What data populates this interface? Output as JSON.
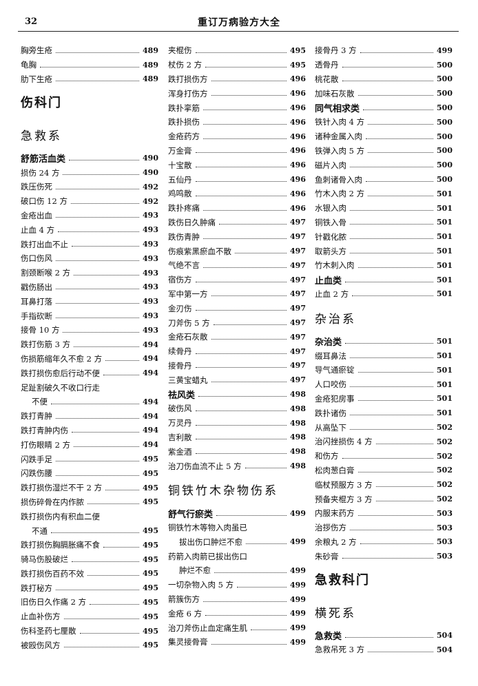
{
  "header": {
    "page_number": "32",
    "book_title": "重订万病验方大全"
  },
  "columns": [
    [
      {
        "type": "entry",
        "text": "胸旁生疮",
        "page": "489"
      },
      {
        "type": "entry",
        "text": "龟胸",
        "page": "489"
      },
      {
        "type": "entry",
        "text": "肋下生疮",
        "page": "489"
      },
      {
        "type": "h1",
        "text": "伤科门"
      },
      {
        "type": "h2",
        "text": "急救系"
      },
      {
        "type": "cat",
        "text": "舒筋活血类",
        "page": "490"
      },
      {
        "type": "entry",
        "text": "损伤 24 方",
        "page": "490"
      },
      {
        "type": "entry",
        "text": "跌压伤死",
        "page": "492"
      },
      {
        "type": "entry",
        "text": "破口伤 12 方",
        "page": "492"
      },
      {
        "type": "entry",
        "text": "金疮出血",
        "page": "493"
      },
      {
        "type": "entry",
        "text": "止血 4 方",
        "page": "493"
      },
      {
        "type": "entry",
        "text": "跌打出血不止",
        "page": "493"
      },
      {
        "type": "entry",
        "text": "伤口伤风",
        "page": "493"
      },
      {
        "type": "entry",
        "text": "割颈断喉 2 方",
        "page": "493"
      },
      {
        "type": "entry",
        "text": "戳伤肠出",
        "page": "493"
      },
      {
        "type": "entry",
        "text": "耳鼻打落",
        "page": "493"
      },
      {
        "type": "entry",
        "text": "手指砍断",
        "page": "493"
      },
      {
        "type": "entry",
        "text": "接骨 10 方",
        "page": "493"
      },
      {
        "type": "entry",
        "text": "跌打伤筋 3 方",
        "page": "494"
      },
      {
        "type": "entry",
        "text": "伤损筋缩年久不愈 2 方",
        "page": "494"
      },
      {
        "type": "entry",
        "text": "跌打损伤愈后行动不便",
        "page": "494"
      },
      {
        "type": "wrap",
        "text": "足趾割破久不收口行走"
      },
      {
        "type": "cont",
        "text": "不便",
        "page": "494"
      },
      {
        "type": "entry",
        "text": "跌打青肿",
        "page": "494"
      },
      {
        "type": "entry",
        "text": "跌打青肿内伤",
        "page": "494"
      },
      {
        "type": "entry",
        "text": "打伤眼睛 2 方",
        "page": "494"
      },
      {
        "type": "entry",
        "text": "闪跌手足",
        "page": "495"
      },
      {
        "type": "entry",
        "text": "闪跌伤腰",
        "page": "495"
      },
      {
        "type": "entry",
        "text": "跌打损伤湿烂不干 2 方",
        "page": "495"
      },
      {
        "type": "entry",
        "text": "损伤碎骨在内作脓",
        "page": "495"
      },
      {
        "type": "wrap",
        "text": "跌打损伤内有积血二便"
      },
      {
        "type": "cont",
        "text": "不通",
        "page": "495"
      },
      {
        "type": "entry",
        "text": "跌打损伤胸膈胀痛不食",
        "page": "495"
      },
      {
        "type": "entry",
        "text": "骑马伤股破烂",
        "page": "495"
      },
      {
        "type": "entry",
        "text": "跌打损伤百药不效",
        "page": "495"
      },
      {
        "type": "entry",
        "text": "跌打秘方",
        "page": "495"
      },
      {
        "type": "entry",
        "text": "旧伤日久作痛 2 方",
        "page": "495"
      },
      {
        "type": "entry",
        "text": "止血补伤方",
        "page": "495"
      },
      {
        "type": "entry",
        "text": "伤科圣药七厘散",
        "page": "495"
      },
      {
        "type": "entry",
        "text": "被殴伤风方",
        "page": "495"
      }
    ],
    [
      {
        "type": "entry",
        "text": "夹棍伤",
        "page": "495"
      },
      {
        "type": "entry",
        "text": "杖伤 2 方",
        "page": "495"
      },
      {
        "type": "entry",
        "text": "跌打损伤方",
        "page": "496"
      },
      {
        "type": "entry",
        "text": "浑身打伤方",
        "page": "496"
      },
      {
        "type": "entry",
        "text": "跌扑挛筋",
        "page": "496"
      },
      {
        "type": "entry",
        "text": "跌扑损伤",
        "page": "496"
      },
      {
        "type": "entry",
        "text": "金疮药方",
        "page": "496"
      },
      {
        "type": "entry",
        "text": "万金膏",
        "page": "496"
      },
      {
        "type": "entry",
        "text": "十宝散",
        "page": "496"
      },
      {
        "type": "entry",
        "text": "五仙丹",
        "page": "496"
      },
      {
        "type": "entry",
        "text": "鸡鸣散",
        "page": "496"
      },
      {
        "type": "entry",
        "text": "跌扑疼痛",
        "page": "496"
      },
      {
        "type": "entry",
        "text": "跌伤日久肿痛",
        "page": "497"
      },
      {
        "type": "entry",
        "text": "跌伤青肿",
        "page": "497"
      },
      {
        "type": "entry",
        "text": "伤痕紫黑瘀血不散",
        "page": "497"
      },
      {
        "type": "entry",
        "text": "气绝不言",
        "page": "497"
      },
      {
        "type": "entry",
        "text": "宿伤方",
        "page": "497"
      },
      {
        "type": "entry",
        "text": "军中第一方",
        "page": "497"
      },
      {
        "type": "entry",
        "text": "金刃伤",
        "page": "497"
      },
      {
        "type": "entry",
        "text": "刀斧伤 5 方",
        "page": "497"
      },
      {
        "type": "entry",
        "text": "金疮石灰散",
        "page": "497"
      },
      {
        "type": "entry",
        "text": "续骨丹",
        "page": "497"
      },
      {
        "type": "entry",
        "text": "接骨丹",
        "page": "497"
      },
      {
        "type": "entry",
        "text": "三黄宝蜡丸",
        "page": "497"
      },
      {
        "type": "cat",
        "text": "祛风类",
        "page": "498"
      },
      {
        "type": "entry",
        "text": "破伤风",
        "page": "498"
      },
      {
        "type": "entry",
        "text": "万灵丹",
        "page": "498"
      },
      {
        "type": "entry",
        "text": "吉利散",
        "page": "498"
      },
      {
        "type": "entry",
        "text": "紫金酒",
        "page": "498"
      },
      {
        "type": "entry",
        "text": "治刀伤血流不止 5 方",
        "page": "498"
      },
      {
        "type": "h2",
        "text": "铜铁竹木杂物伤系"
      },
      {
        "type": "cat",
        "text": "舒气行瘀类",
        "page": "499"
      },
      {
        "type": "wrap",
        "text": "铜铁竹木等物入肉虽已"
      },
      {
        "type": "cont",
        "text": "拔出伤口肿烂不愈",
        "page": "499"
      },
      {
        "type": "wrap",
        "text": "药箭入肉箭已拔出伤口"
      },
      {
        "type": "cont",
        "text": "肿烂不愈",
        "page": "499"
      },
      {
        "type": "entry",
        "text": "一切杂物入肉 5 方",
        "page": "499"
      },
      {
        "type": "entry",
        "text": "箭簇伤方",
        "page": "499"
      },
      {
        "type": "entry",
        "text": "金疮 6 方",
        "page": "499"
      },
      {
        "type": "entry",
        "text": "治刀斧伤止血定痛生肌",
        "page": "499"
      },
      {
        "type": "entry",
        "text": "集灵接骨膏",
        "page": "499"
      }
    ],
    [
      {
        "type": "entry",
        "text": "接骨丹 3 方",
        "page": "499"
      },
      {
        "type": "entry",
        "text": "透骨丹",
        "page": "500"
      },
      {
        "type": "entry",
        "text": "桃花散",
        "page": "500"
      },
      {
        "type": "entry",
        "text": "加味石灰散",
        "page": "500"
      },
      {
        "type": "cat",
        "text": "同气相求类",
        "page": "500"
      },
      {
        "type": "entry",
        "text": "铁针入肉 4 方",
        "page": "500"
      },
      {
        "type": "entry",
        "text": "诸种金属入肉",
        "page": "500"
      },
      {
        "type": "entry",
        "text": "铁弹入肉 5 方",
        "page": "500"
      },
      {
        "type": "entry",
        "text": "磁片入肉",
        "page": "500"
      },
      {
        "type": "entry",
        "text": "鱼刺诸骨入肉",
        "page": "500"
      },
      {
        "type": "entry",
        "text": "竹木入肉 2 方",
        "page": "501"
      },
      {
        "type": "entry",
        "text": "水银入肉",
        "page": "501"
      },
      {
        "type": "entry",
        "text": "铜铁入骨",
        "page": "501"
      },
      {
        "type": "entry",
        "text": "针戳化脓",
        "page": "501"
      },
      {
        "type": "entry",
        "text": "取箭头方",
        "page": "501"
      },
      {
        "type": "entry",
        "text": "竹木刺入肉",
        "page": "501"
      },
      {
        "type": "cat",
        "text": "止血类",
        "page": "501"
      },
      {
        "type": "entry",
        "text": "止血 2 方",
        "page": "501"
      },
      {
        "type": "h2",
        "text": "杂治系"
      },
      {
        "type": "cat",
        "text": "杂治类",
        "page": "501"
      },
      {
        "type": "entry",
        "text": "缀耳鼻法",
        "page": "501"
      },
      {
        "type": "entry",
        "text": "导气通瘀锭",
        "page": "501"
      },
      {
        "type": "entry",
        "text": "人口咬伤",
        "page": "501"
      },
      {
        "type": "entry",
        "text": "金疮犯房事",
        "page": "501"
      },
      {
        "type": "entry",
        "text": "跌扑诸伤",
        "page": "501"
      },
      {
        "type": "entry",
        "text": "从高坠下",
        "page": "502"
      },
      {
        "type": "entry",
        "text": "治闪挫损伤 4 方",
        "page": "502"
      },
      {
        "type": "entry",
        "text": "和伤方",
        "page": "502"
      },
      {
        "type": "entry",
        "text": "松肉葱白膏",
        "page": "502"
      },
      {
        "type": "entry",
        "text": "临杖预服方 3 方",
        "page": "502"
      },
      {
        "type": "entry",
        "text": "预备夹棍方 3 方",
        "page": "502"
      },
      {
        "type": "entry",
        "text": "内服末药方",
        "page": "503"
      },
      {
        "type": "entry",
        "text": "治拶伤方",
        "page": "503"
      },
      {
        "type": "entry",
        "text": "余粮丸 2 方",
        "page": "503"
      },
      {
        "type": "entry",
        "text": "朱砂膏",
        "page": "503"
      },
      {
        "type": "h1",
        "text": "急救科门"
      },
      {
        "type": "h2",
        "text": "横死系"
      },
      {
        "type": "cat",
        "text": "急救类",
        "page": "504"
      },
      {
        "type": "entry",
        "text": "急救吊死 3 方",
        "page": "504"
      }
    ]
  ]
}
